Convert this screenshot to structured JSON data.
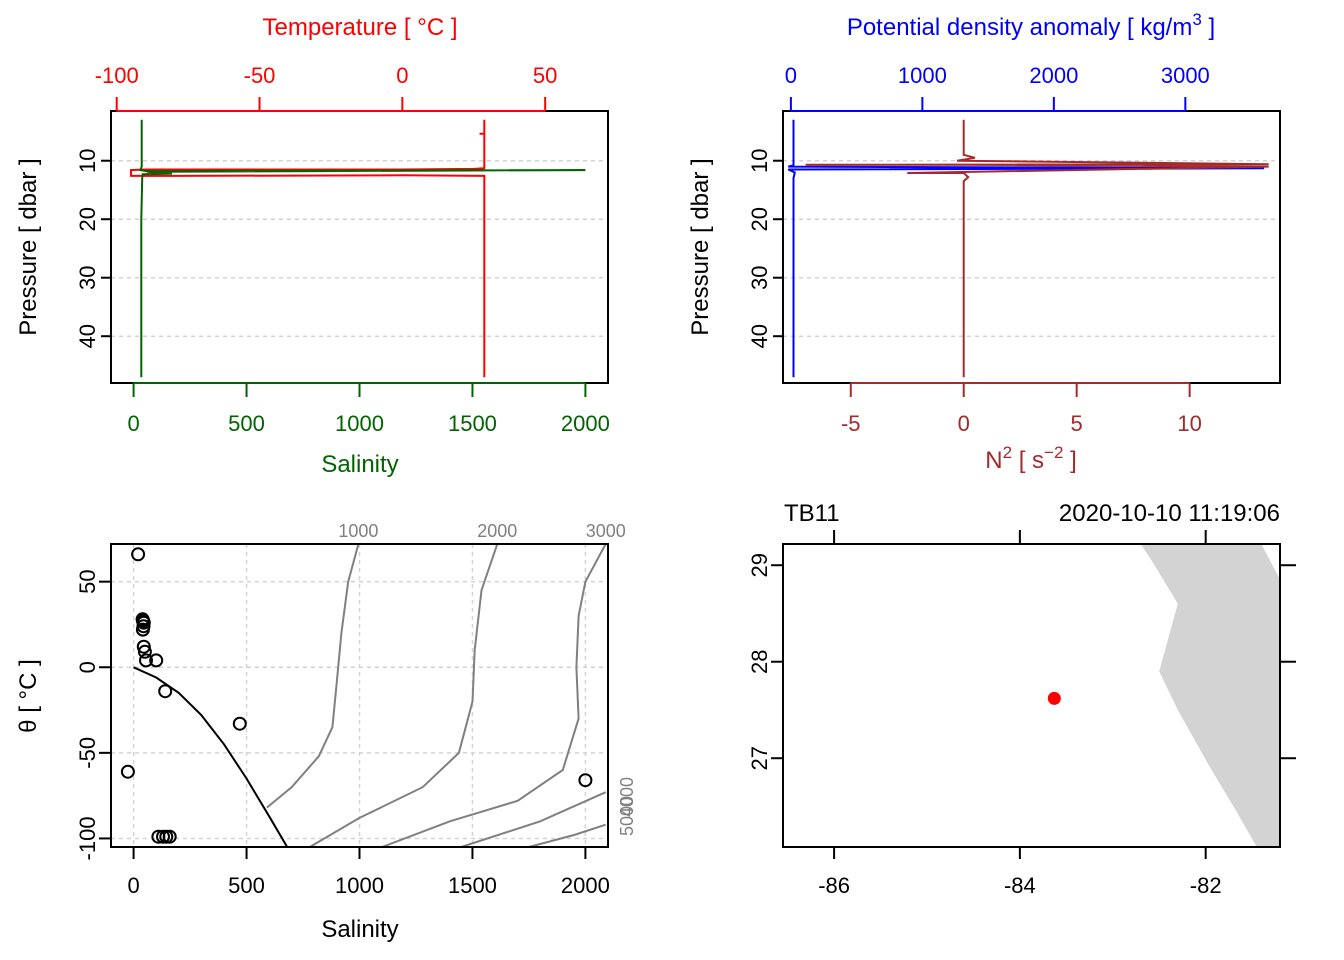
{
  "chart_data": [
    {
      "id": "profile-ts",
      "type": "line",
      "top_axis": {
        "label": "Temperature [ °C ]",
        "color": "#ff0000",
        "range": [
          -102,
          72
        ],
        "ticks": [
          -100,
          -50,
          0,
          50
        ],
        "tick_labels": [
          "-100",
          "-50",
          "0",
          "50"
        ]
      },
      "bottom_axis": {
        "label": "Salinity",
        "color": "#006400",
        "range": [
          -100,
          2100
        ],
        "ticks": [
          0,
          500,
          1000,
          1500,
          2000
        ],
        "tick_labels": [
          "0",
          "500",
          "1000",
          "1500",
          "2000"
        ]
      },
      "left_axis": {
        "label": "Pressure [ dbar ]",
        "range_reversed": [
          1.5,
          48
        ],
        "ticks": [
          10,
          20,
          30,
          40
        ],
        "tick_labels": [
          "10",
          "20",
          "30",
          "40"
        ]
      },
      "grid": true,
      "series": [
        {
          "name": "Temperature",
          "color": "#ff0000",
          "axis": "top",
          "points": [
            [
              28.7,
              3
            ],
            [
              28.7,
              5.4
            ],
            [
              27,
              5.4
            ],
            [
              28.7,
              5.4
            ],
            [
              28.7,
              11.3
            ],
            [
              25,
              11.4
            ],
            [
              0,
              11.5
            ],
            [
              -90,
              11.5
            ],
            [
              -95,
              11.6
            ],
            [
              -95,
              12.6
            ],
            [
              -80,
              12.6
            ],
            [
              0,
              12.5
            ],
            [
              28.7,
              12.6
            ],
            [
              28.7,
              47
            ]
          ]
        },
        {
          "name": "Salinity",
          "color": "#006400",
          "axis": "bottom",
          "points": [
            [
              36,
              3
            ],
            [
              36,
              11
            ],
            [
              30,
              11.6
            ],
            [
              60,
              11.8
            ],
            [
              2000,
              11.6
            ],
            [
              60,
              11.9
            ],
            [
              170,
              12.2
            ],
            [
              40,
              12.3
            ],
            [
              38,
              13
            ],
            [
              34,
              20
            ],
            [
              34,
              47
            ]
          ]
        }
      ]
    },
    {
      "id": "profile-density-n2",
      "type": "line",
      "top_axis": {
        "label": "Potential density anomaly [ kg/m³ ]",
        "label_main": "Potential density anomaly [ kg/m",
        "label_sup": "3",
        "label_end": " ]",
        "color": "#0000ff",
        "range": [
          -60,
          3720
        ],
        "ticks": [
          0,
          1000,
          2000,
          3000
        ],
        "tick_labels": [
          "0",
          "1000",
          "2000",
          "3000"
        ]
      },
      "bottom_axis": {
        "label": "N² [ s⁻² ]",
        "label_main": "N",
        "label_sup": "2",
        "label_mid": " [ s",
        "label_sup2": "−2",
        "label_end": " ]",
        "color": "#a52a2a",
        "range": [
          -8,
          14
        ],
        "ticks": [
          -5,
          0,
          5,
          10
        ],
        "tick_labels": [
          "-5",
          "0",
          "5",
          "10"
        ]
      },
      "left_axis": {
        "label": "Pressure [ dbar ]",
        "range_reversed": [
          1.5,
          48
        ],
        "ticks": [
          10,
          20,
          30,
          40
        ],
        "tick_labels": [
          "10",
          "20",
          "30",
          "40"
        ]
      },
      "grid": true,
      "series": [
        {
          "name": "Potential density anomaly",
          "color": "#0000ff",
          "axis": "top",
          "points": [
            [
              20,
              3
            ],
            [
              20,
              10.8
            ],
            [
              -20,
              11
            ],
            [
              3600,
              11.3
            ],
            [
              -20,
              11.5
            ],
            [
              30,
              12
            ],
            [
              20,
              13
            ],
            [
              20,
              47
            ]
          ]
        },
        {
          "name": "N2",
          "color": "#a52a2a",
          "axis": "bottom",
          "points": [
            [
              0,
              3
            ],
            [
              0,
              9
            ],
            [
              0.5,
              9.5
            ],
            [
              -0.3,
              10
            ],
            [
              13.5,
              10.6
            ],
            [
              -7,
              10.7
            ],
            [
              0,
              10.7
            ],
            [
              13.5,
              11
            ],
            [
              -2.5,
              12.1
            ],
            [
              0,
              12.1
            ],
            [
              0.2,
              12.8
            ],
            [
              0,
              13.5
            ],
            [
              0,
              47
            ]
          ]
        }
      ]
    },
    {
      "id": "ts-diagram",
      "type": "scatter",
      "xlabel": "Salinity",
      "ylabel": "θ [ °C ]",
      "xlim": [
        -100,
        2100
      ],
      "ylim": [
        -105,
        72
      ],
      "x_ticks": [
        0,
        500,
        1000,
        1500,
        2000
      ],
      "x_tick_labels": [
        "0",
        "500",
        "1000",
        "1500",
        "2000"
      ],
      "y_ticks": [
        50,
        0,
        -50,
        -100
      ],
      "y_tick_labels": [
        "50",
        "0",
        "-50",
        "-100"
      ],
      "grid": true,
      "points": [
        [
          20,
          66
        ],
        [
          40,
          28
        ],
        [
          42,
          27
        ],
        [
          45,
          26
        ],
        [
          44,
          24
        ],
        [
          41,
          22
        ],
        [
          45,
          12
        ],
        [
          50,
          9
        ],
        [
          55,
          4
        ],
        [
          100,
          4
        ],
        [
          140,
          -14
        ],
        [
          470,
          -33
        ],
        [
          -25,
          -61
        ],
        [
          2000,
          -66
        ],
        [
          110,
          -99
        ],
        [
          130,
          -99
        ],
        [
          145,
          -99
        ],
        [
          160,
          -99
        ]
      ],
      "freezing_line": [
        [
          0,
          0
        ],
        [
          100,
          -6
        ],
        [
          200,
          -15
        ],
        [
          300,
          -28
        ],
        [
          400,
          -45
        ],
        [
          500,
          -65
        ],
        [
          600,
          -87
        ],
        [
          680,
          -105
        ]
      ],
      "isopycnals": [
        {
          "label": "1000",
          "points": [
            [
              590,
              -82
            ],
            [
              700,
              -70
            ],
            [
              820,
              -52
            ],
            [
              880,
              -35
            ],
            [
              900,
              -8
            ],
            [
              920,
              20
            ],
            [
              950,
              50
            ],
            [
              995,
              72
            ]
          ]
        },
        {
          "label": "2000",
          "points": [
            [
              780,
              -105
            ],
            [
              1000,
              -88
            ],
            [
              1280,
              -70
            ],
            [
              1440,
              -50
            ],
            [
              1500,
              -20
            ],
            [
              1510,
              10
            ],
            [
              1540,
              45
            ],
            [
              1610,
              72
            ]
          ]
        },
        {
          "label": "3000",
          "points": [
            [
              1100,
              -105
            ],
            [
              1400,
              -90
            ],
            [
              1700,
              -78
            ],
            [
              1900,
              -60
            ],
            [
              1970,
              -30
            ],
            [
              1960,
              0
            ],
            [
              1970,
              30
            ],
            [
              2000,
              50
            ],
            [
              2090,
              72
            ]
          ]
        },
        {
          "label": "4000",
          "points": [
            [
              1450,
              -105
            ],
            [
              1800,
              -90
            ],
            [
              2090,
              -73
            ]
          ]
        },
        {
          "label": "5000",
          "points": [
            [
              1750,
              -105
            ],
            [
              1950,
              -98
            ],
            [
              2090,
              -92
            ]
          ]
        }
      ],
      "isopycnal_right_labels": [
        "4000",
        "5000"
      ],
      "isopycnal_color": "#808080"
    },
    {
      "id": "station-map",
      "type": "scatter",
      "title_left": "TB11",
      "title_right": "2020-10-10 11:19:06",
      "xlim": [
        -86.55,
        -81.2
      ],
      "ylim": [
        26.08,
        29.22
      ],
      "x_ticks": [
        -86,
        -84,
        -82
      ],
      "x_tick_labels": [
        "-86",
        "-84",
        "-82"
      ],
      "y_ticks": [
        27,
        28,
        29
      ],
      "y_tick_labels": [
        "27",
        "28",
        "29"
      ],
      "station": {
        "lon": -83.63,
        "lat": 27.62,
        "color": "#ff0000"
      },
      "land_color": "#d3d3d3",
      "coastline": [
        [
          -82.7,
          29.22
        ],
        [
          -82.55,
          29.0
        ],
        [
          -82.3,
          28.6
        ],
        [
          -82.5,
          27.9
        ],
        [
          -82.3,
          27.5
        ],
        [
          -81.95,
          26.9
        ],
        [
          -81.7,
          26.5
        ],
        [
          -81.45,
          26.08
        ],
        [
          -81.2,
          26.08
        ],
        [
          -81.2,
          28.85
        ],
        [
          -81.4,
          29.22
        ]
      ]
    }
  ]
}
